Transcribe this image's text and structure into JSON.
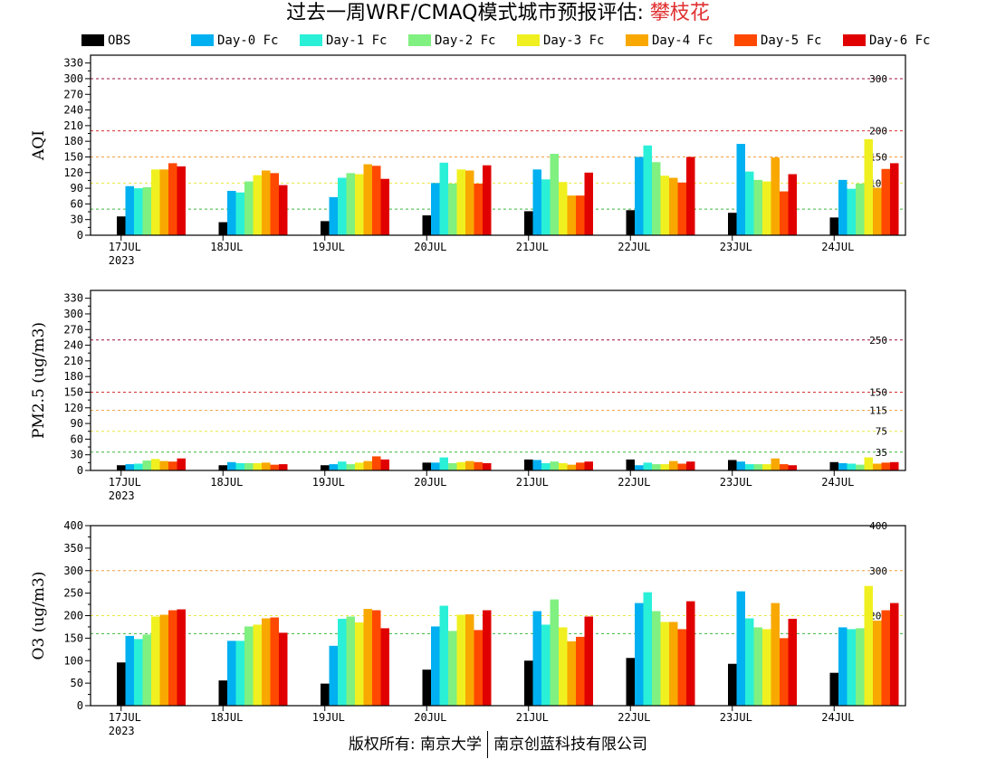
{
  "title": {
    "main": "过去一周WRF/CMAQ模式城市预报评估: ",
    "city": "攀枝花"
  },
  "legend": [
    {
      "label": "OBS",
      "color": "#000000"
    },
    {
      "label": "Day-0 Fc",
      "color": "#00b0f0"
    },
    {
      "label": "Day-1 Fc",
      "color": "#2af0d8"
    },
    {
      "label": "Day-2 Fc",
      "color": "#80f080"
    },
    {
      "label": "Day-3 Fc",
      "color": "#f0f020"
    },
    {
      "label": "Day-4 Fc",
      "color": "#f8a800"
    },
    {
      "label": "Day-5 Fc",
      "color": "#ff4800"
    },
    {
      "label": "Day-6 Fc",
      "color": "#e00000"
    }
  ],
  "footer": {
    "left": "版权所有: 南京大学",
    "right": "南京创蓝科技有限公司"
  },
  "chart_data": [
    {
      "type": "bar",
      "ylabel": "AQI",
      "categories": [
        "17JUL",
        "18JUL",
        "19JUL",
        "20JUL",
        "21JUL",
        "22JUL",
        "23JUL",
        "24JUL"
      ],
      "year_label": "2023",
      "ylim": [
        0,
        345
      ],
      "yticks": [
        0,
        30,
        60,
        90,
        120,
        150,
        180,
        210,
        240,
        270,
        300,
        330
      ],
      "yticks_minor": [
        15,
        45,
        75,
        105,
        135,
        165,
        195,
        225,
        255,
        285,
        315
      ],
      "reference_lines": [
        {
          "value": 50,
          "label": "50",
          "color": "#3cb83c"
        },
        {
          "value": 100,
          "label": "100",
          "color": "#e8e840"
        },
        {
          "value": 150,
          "label": "150",
          "color": "#f0a040"
        },
        {
          "value": 200,
          "label": "200",
          "color": "#d83030"
        },
        {
          "value": 300,
          "label": "300",
          "color": "#a01040"
        }
      ],
      "series": [
        {
          "name": "OBS",
          "values": [
            36,
            25,
            27,
            38,
            46,
            48,
            43,
            34
          ]
        },
        {
          "name": "Day-0 Fc",
          "values": [
            94,
            85,
            73,
            100,
            126,
            150,
            175,
            106
          ]
        },
        {
          "name": "Day-1 Fc",
          "values": [
            90,
            82,
            110,
            139,
            107,
            172,
            122,
            89
          ]
        },
        {
          "name": "Day-2 Fc",
          "values": [
            92,
            103,
            119,
            99,
            156,
            140,
            106,
            99
          ]
        },
        {
          "name": "Day-3 Fc",
          "values": [
            126,
            115,
            117,
            126,
            102,
            114,
            103,
            184
          ]
        },
        {
          "name": "Day-4 Fc",
          "values": [
            126,
            124,
            136,
            124,
            76,
            110,
            149,
            91
          ]
        },
        {
          "name": "Day-5 Fc",
          "values": [
            138,
            119,
            133,
            99,
            76,
            101,
            84,
            127
          ]
        },
        {
          "name": "Day-6 Fc",
          "values": [
            132,
            96,
            108,
            134,
            120,
            150,
            117,
            138
          ]
        }
      ]
    },
    {
      "type": "bar",
      "ylabel": "PM2.5 (ug/m3)",
      "categories": [
        "17JUL",
        "18JUL",
        "19JUL",
        "20JUL",
        "21JUL",
        "22JUL",
        "23JUL",
        "24JUL"
      ],
      "year_label": "2023",
      "ylim": [
        0,
        345
      ],
      "yticks": [
        0,
        30,
        60,
        90,
        120,
        150,
        180,
        210,
        240,
        270,
        300,
        330
      ],
      "yticks_minor": [
        15,
        45,
        75,
        105,
        135,
        165,
        195,
        225,
        255,
        285,
        315
      ],
      "reference_lines": [
        {
          "value": 35,
          "label": "35",
          "color": "#3cb83c"
        },
        {
          "value": 75,
          "label": "75",
          "color": "#e8e840"
        },
        {
          "value": 115,
          "label": "115",
          "color": "#f0a040"
        },
        {
          "value": 150,
          "label": "150",
          "color": "#d83030"
        },
        {
          "value": 250,
          "label": "250",
          "color": "#a01040"
        }
      ],
      "series": [
        {
          "name": "OBS",
          "values": [
            10,
            10,
            10,
            15,
            21,
            21,
            20,
            16
          ]
        },
        {
          "name": "Day-0 Fc",
          "values": [
            12,
            16,
            12,
            15,
            20,
            10,
            17,
            14
          ]
        },
        {
          "name": "Day-1 Fc",
          "values": [
            13,
            14,
            17,
            25,
            14,
            15,
            12,
            13
          ]
        },
        {
          "name": "Day-2 Fc",
          "values": [
            19,
            14,
            12,
            14,
            17,
            12,
            12,
            11
          ]
        },
        {
          "name": "Day-3 Fc",
          "values": [
            22,
            14,
            15,
            16,
            14,
            12,
            12,
            25
          ]
        },
        {
          "name": "Day-4 Fc",
          "values": [
            18,
            15,
            18,
            18,
            11,
            18,
            23,
            13
          ]
        },
        {
          "name": "Day-5 Fc",
          "values": [
            17,
            11,
            27,
            16,
            15,
            13,
            12,
            15
          ]
        },
        {
          "name": "Day-6 Fc",
          "values": [
            23,
            12,
            21,
            14,
            17,
            17,
            10,
            16
          ]
        }
      ]
    },
    {
      "type": "bar",
      "ylabel": "O3 (ug/m3)",
      "categories": [
        "17JUL",
        "18JUL",
        "19JUL",
        "20JUL",
        "21JUL",
        "22JUL",
        "23JUL",
        "24JUL"
      ],
      "year_label": "2023",
      "ylim": [
        0,
        400
      ],
      "yticks": [
        0,
        50,
        100,
        150,
        200,
        250,
        300,
        350,
        400
      ],
      "yticks_minor": [
        25,
        75,
        125,
        175,
        225,
        275,
        325,
        375
      ],
      "reference_lines": [
        {
          "value": 160,
          "label": "160",
          "color": "#3cb83c"
        },
        {
          "value": 200,
          "label": "200",
          "color": "#e8e840"
        },
        {
          "value": 300,
          "label": "300",
          "color": "#f0a040"
        },
        {
          "value": 400,
          "label": "400",
          "color": "#d83030"
        }
      ],
      "series": [
        {
          "name": "OBS",
          "values": [
            96,
            56,
            49,
            80,
            100,
            106,
            93,
            73
          ]
        },
        {
          "name": "Day-0 Fc",
          "values": [
            155,
            144,
            133,
            176,
            210,
            228,
            254,
            174
          ]
        },
        {
          "name": "Day-1 Fc",
          "values": [
            148,
            144,
            193,
            222,
            180,
            252,
            194,
            170
          ]
        },
        {
          "name": "Day-2 Fc",
          "values": [
            158,
            176,
            198,
            166,
            236,
            210,
            174,
            172
          ]
        },
        {
          "name": "Day-3 Fc",
          "values": [
            198,
            180,
            185,
            202,
            174,
            186,
            170,
            266
          ]
        },
        {
          "name": "Day-4 Fc",
          "values": [
            202,
            194,
            215,
            203,
            143,
            186,
            228,
            189
          ]
        },
        {
          "name": "Day-5 Fc",
          "values": [
            212,
            196,
            212,
            168,
            153,
            170,
            150,
            212
          ]
        },
        {
          "name": "Day-6 Fc",
          "values": [
            214,
            162,
            172,
            212,
            198,
            232,
            193,
            228
          ]
        }
      ]
    }
  ]
}
